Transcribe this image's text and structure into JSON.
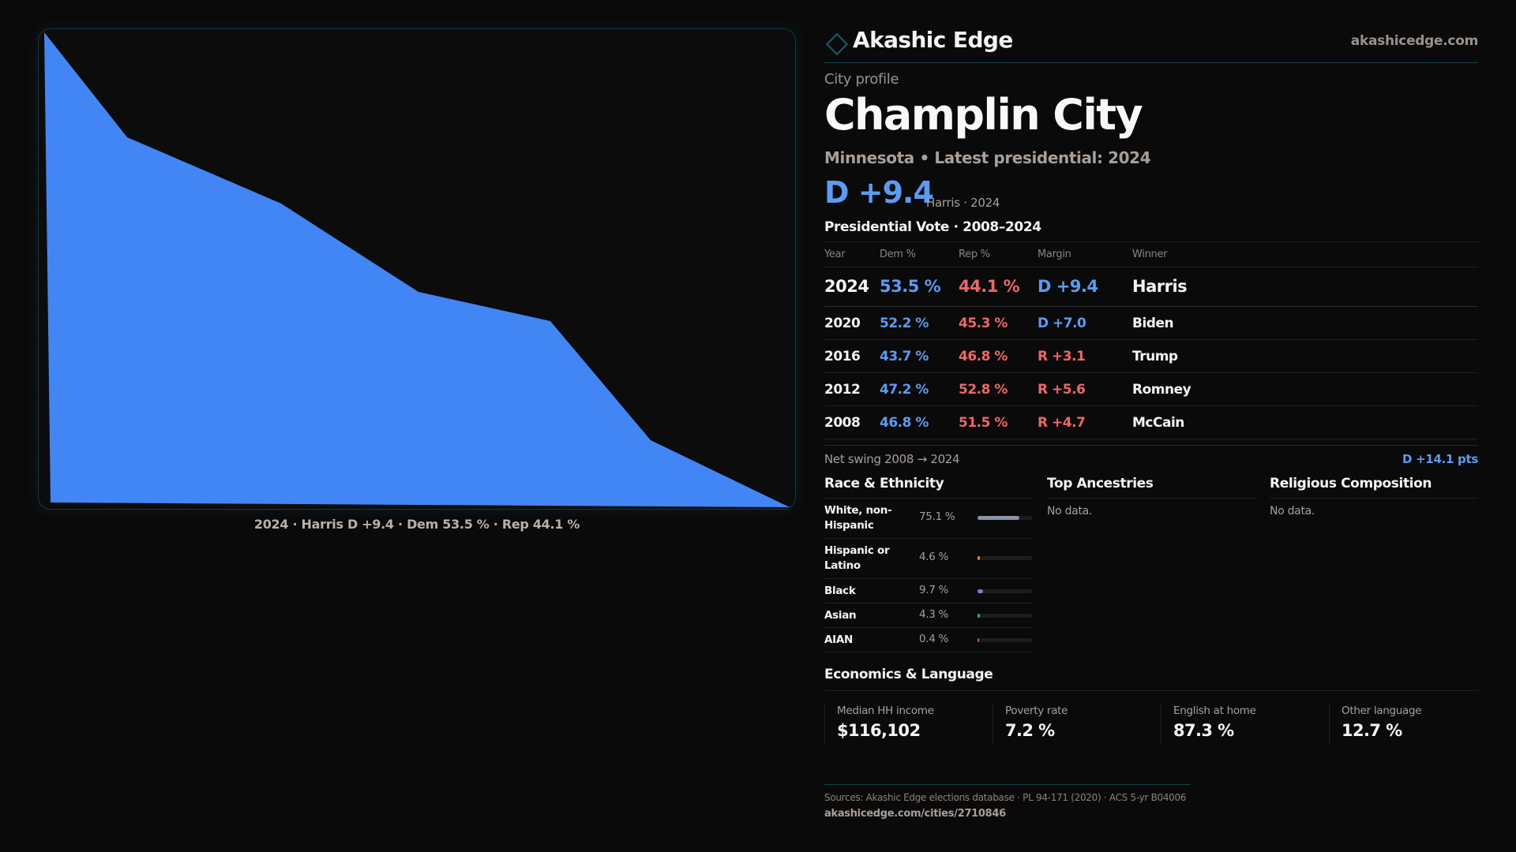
{
  "colors": {
    "dem": "#5b9cf2",
    "rep": "#ee6767",
    "map_fill": "#4285f4",
    "accent": "#12616c"
  },
  "map": {
    "shape_fill": "#4285f4",
    "caption": "2024 · Harris D +9.4 · Dem 53.5 % · Rep 44.1 %"
  },
  "brand": {
    "logo_icon": "diamond-outline",
    "name": "Akashic Edge",
    "url": "akashicedge.com"
  },
  "profile": {
    "kicker": "City profile",
    "title": "Champlin City",
    "subtitle": "Minnesota • Latest presidential: 2024",
    "margin": "D +9.4",
    "margin_detail": "Harris · 2024"
  },
  "vote": {
    "title": "Presidential Vote · 2008–2024",
    "headers": [
      "Year",
      "Dem %",
      "Rep %",
      "Margin",
      "Winner"
    ],
    "rows": [
      {
        "year": "2024",
        "dem": "53.5 %",
        "rep": "44.1 %",
        "margin": "D +9.4",
        "party": "D",
        "winner": "Harris"
      },
      {
        "year": "2020",
        "dem": "52.2 %",
        "rep": "45.3 %",
        "margin": "D +7.0",
        "party": "D",
        "winner": "Biden"
      },
      {
        "year": "2016",
        "dem": "43.7 %",
        "rep": "46.8 %",
        "margin": "R +3.1",
        "party": "R",
        "winner": "Trump"
      },
      {
        "year": "2012",
        "dem": "47.2 %",
        "rep": "52.8 %",
        "margin": "R +5.6",
        "party": "R",
        "winner": "Romney"
      },
      {
        "year": "2008",
        "dem": "46.8 %",
        "rep": "51.5 %",
        "margin": "R +4.7",
        "party": "R",
        "winner": "McCain"
      }
    ],
    "swing_label": "Net swing 2008 → 2024",
    "swing_value": "D +14.1 pts"
  },
  "race": {
    "title": "Race & Ethnicity",
    "rows": [
      {
        "label": "White, non-Hispanic",
        "pct": "75.1 %",
        "value": 75.1,
        "color": "#8a94a6"
      },
      {
        "label": "Hispanic or Latino",
        "pct": "4.6 %",
        "value": 4.6,
        "color": "#d98a1c"
      },
      {
        "label": "Black",
        "pct": "9.7 %",
        "value": 9.7,
        "color": "#8b73d6"
      },
      {
        "label": "Asian",
        "pct": "4.3 %",
        "value": 4.3,
        "color": "#22b07d"
      },
      {
        "label": "AIAN",
        "pct": "0.4 %",
        "value": 0.4,
        "color": "#c2562e"
      }
    ]
  },
  "ancestries": {
    "title": "Top Ancestries",
    "empty": "No data."
  },
  "religion": {
    "title": "Religious Composition",
    "empty": "No data."
  },
  "economics": {
    "title": "Economics & Language",
    "stats": [
      {
        "label": "Median HH income",
        "value": "$116,102"
      },
      {
        "label": "Poverty rate",
        "value": "7.2 %"
      },
      {
        "label": "English at home",
        "value": "87.3 %"
      },
      {
        "label": "Other language",
        "value": "12.7 %"
      }
    ]
  },
  "footer": {
    "sources": "Sources: Akashic Edge elections database · PL 94-171 (2020) · ACS 5-yr B04006",
    "link": "akashicedge.com/cities/2710846"
  }
}
